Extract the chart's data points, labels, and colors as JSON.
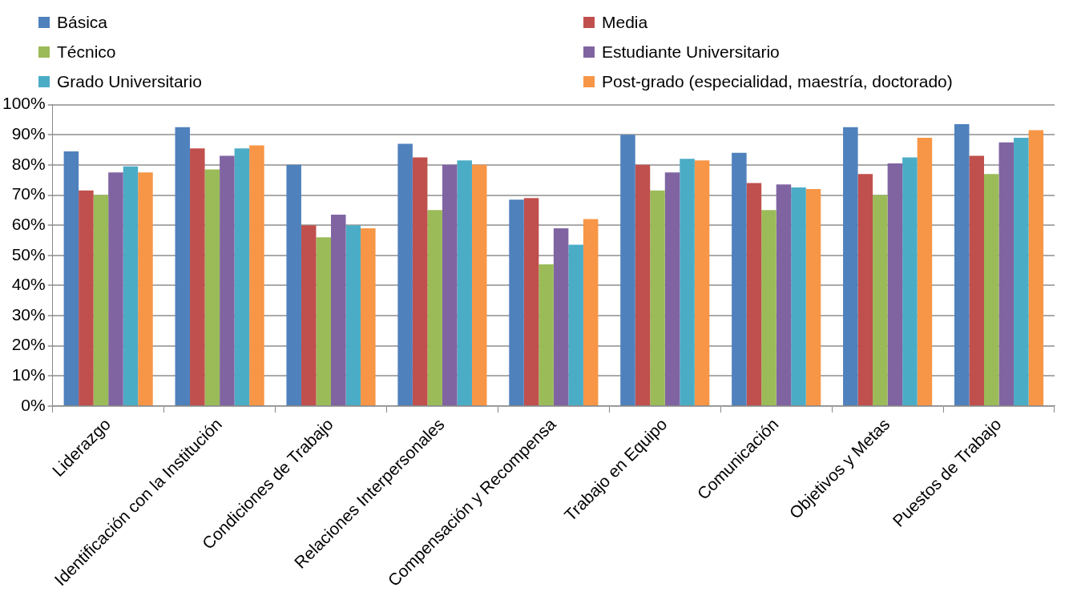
{
  "chart_data": {
    "type": "bar",
    "categories": [
      "Liderazgo",
      "Identificación con la Institución",
      "Condiciones de Trabajo",
      "Relaciones Interpersonales",
      "Compensación y Recompensa",
      "Trabajo en Equipo",
      "Comunicación",
      "Objetivos y Metas",
      "Puestos de Trabajo"
    ],
    "series": [
      {
        "name": "Básica",
        "color": "#4f81bd",
        "values": [
          84.5,
          92.5,
          80,
          87,
          68.5,
          90,
          84,
          92.5,
          93.5
        ]
      },
      {
        "name": "Media",
        "color": "#c0504d",
        "values": [
          71.5,
          85.5,
          60,
          82.5,
          69,
          80,
          74,
          77,
          83
        ]
      },
      {
        "name": "Técnico",
        "color": "#9bbb59",
        "values": [
          70,
          78.5,
          56,
          65,
          47,
          71.5,
          65,
          70,
          77
        ]
      },
      {
        "name": "Estudiante Universitario",
        "color": "#8064a2",
        "values": [
          77.5,
          83,
          63.5,
          80,
          59,
          77.5,
          73.5,
          80.5,
          87.5
        ]
      },
      {
        "name": "Grado Universitario",
        "color": "#4bacc6",
        "values": [
          79.5,
          85.5,
          60,
          81.5,
          53.5,
          82,
          72.5,
          82.5,
          89
        ]
      },
      {
        "name": "Post-grado (especialidad, maestría, doctorado)",
        "color": "#f79646",
        "values": [
          77.5,
          86.5,
          59,
          80,
          62,
          81.5,
          72,
          89,
          91.5
        ]
      }
    ],
    "ylim": [
      0,
      100
    ],
    "yticks": [
      {
        "value": 0,
        "label": "0%"
      },
      {
        "value": 10,
        "label": "10%"
      },
      {
        "value": 20,
        "label": "20%"
      },
      {
        "value": 30,
        "label": "30%"
      },
      {
        "value": 40,
        "label": "40%"
      },
      {
        "value": 50,
        "label": "50%"
      },
      {
        "value": 60,
        "label": "60%"
      },
      {
        "value": 70,
        "label": "70%"
      },
      {
        "value": 80,
        "label": "80%"
      },
      {
        "value": 90,
        "label": "90%"
      },
      {
        "value": 100,
        "label": "100%"
      }
    ],
    "grid": "y",
    "legend": "top"
  }
}
